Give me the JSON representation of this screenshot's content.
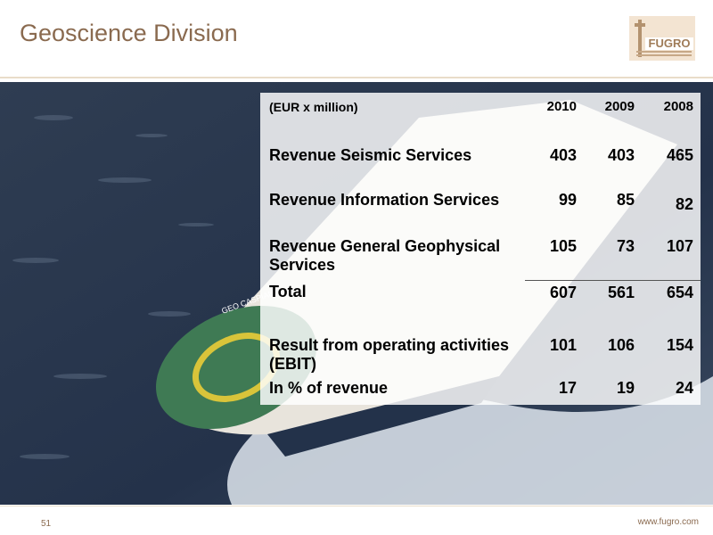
{
  "slide": {
    "title": "Geoscience Division",
    "page_number": "51",
    "footer_url": "www.fugro.com",
    "logo_text": "FUGRO",
    "photo_text": "GEO CASPIAN"
  },
  "colors": {
    "title": "#8a6a4f",
    "rule": "#e9dcc9",
    "sea": "#2b3a4e",
    "helideck": "#3f7a54",
    "helideck_ring": "#d9c43a"
  },
  "table": {
    "header": {
      "unit": "(EUR x million)",
      "years": [
        "2010",
        "2009",
        "2008"
      ]
    },
    "rows": [
      {
        "label": "Revenue Seismic Services",
        "values": [
          "403",
          "403",
          "465"
        ]
      },
      {
        "label": "Revenue Information Services",
        "values": [
          "99",
          "85",
          "82"
        ]
      },
      {
        "label": "Revenue General Geophysical Services",
        "values": [
          "105",
          "73",
          "107"
        ]
      },
      {
        "label": "Total",
        "values": [
          "607",
          "561",
          "654"
        ]
      },
      {
        "label": "Result from operating activities (EBIT)",
        "values": [
          "101",
          "106",
          "154"
        ]
      },
      {
        "label": "In % of revenue",
        "values": [
          "17",
          "19",
          "24"
        ]
      }
    ]
  }
}
